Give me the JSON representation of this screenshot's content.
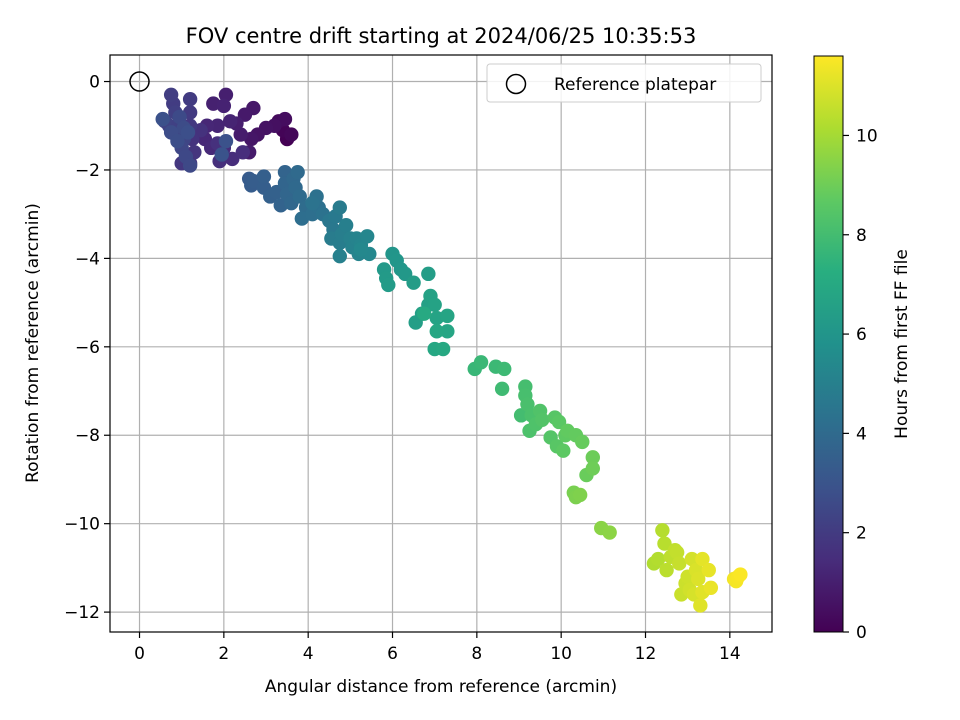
{
  "chart_data": {
    "type": "scatter",
    "title": "FOV centre drift starting at 2024/06/25 10:35:53",
    "xlabel": "Angular distance from reference (arcmin)",
    "ylabel": "Rotation from reference (arcmin)",
    "xlim": [
      -0.7,
      15.0
    ],
    "ylim": [
      -12.45,
      0.6
    ],
    "xticks": [
      0,
      2,
      4,
      6,
      8,
      10,
      12,
      14
    ],
    "yticks": [
      0,
      -2,
      -4,
      -6,
      -8,
      -10,
      -12
    ],
    "grid": true,
    "legend": {
      "placement": "top-right",
      "entries": [
        "Reference platepar"
      ]
    },
    "reference_point": {
      "x": 0,
      "y": 0,
      "label": "Reference platepar"
    },
    "colorbar": {
      "label": "Hours from first FF file",
      "min": 0,
      "max": 11.6,
      "ticks": [
        0,
        2,
        4,
        6,
        8,
        10
      ],
      "colormap": "viridis"
    },
    "series": [
      {
        "points": [
          {
            "x": 3.5,
            "y": -1.3,
            "c": 0.0
          },
          {
            "x": 3.4,
            "y": -1.1,
            "c": 0.1
          },
          {
            "x": 3.6,
            "y": -1.2,
            "c": 0.2
          },
          {
            "x": 3.3,
            "y": -0.9,
            "c": 0.3
          },
          {
            "x": 3.45,
            "y": -0.85,
            "c": 0.4
          },
          {
            "x": 3.2,
            "y": -1.0,
            "c": 0.5
          },
          {
            "x": 3.0,
            "y": -1.05,
            "c": 0.55
          },
          {
            "x": 2.8,
            "y": -1.2,
            "c": 0.6
          },
          {
            "x": 2.65,
            "y": -1.3,
            "c": 0.7
          },
          {
            "x": 2.7,
            "y": -0.6,
            "c": 0.75
          },
          {
            "x": 2.5,
            "y": -0.75,
            "c": 0.8
          },
          {
            "x": 2.6,
            "y": -1.6,
            "c": 0.85
          },
          {
            "x": 2.4,
            "y": -1.2,
            "c": 0.9
          },
          {
            "x": 2.3,
            "y": -0.95,
            "c": 0.95
          },
          {
            "x": 2.05,
            "y": -0.3,
            "c": 1.0
          },
          {
            "x": 1.75,
            "y": -0.5,
            "c": 1.05
          },
          {
            "x": 2.0,
            "y": -0.55,
            "c": 1.1
          },
          {
            "x": 2.15,
            "y": -0.9,
            "c": 1.15
          },
          {
            "x": 1.85,
            "y": -1.0,
            "c": 1.2
          },
          {
            "x": 1.6,
            "y": -1.0,
            "c": 1.25
          },
          {
            "x": 1.55,
            "y": -1.3,
            "c": 1.3
          },
          {
            "x": 1.7,
            "y": -1.5,
            "c": 1.35
          },
          {
            "x": 2.0,
            "y": -1.5,
            "c": 1.4
          },
          {
            "x": 2.2,
            "y": -1.75,
            "c": 1.45
          },
          {
            "x": 2.45,
            "y": -1.6,
            "c": 1.5
          },
          {
            "x": 1.9,
            "y": -1.8,
            "c": 1.55
          },
          {
            "x": 1.85,
            "y": -1.4,
            "c": 1.6
          },
          {
            "x": 1.45,
            "y": -1.1,
            "c": 1.65
          },
          {
            "x": 1.25,
            "y": -1.3,
            "c": 1.7
          },
          {
            "x": 1.3,
            "y": -1.6,
            "c": 1.75
          },
          {
            "x": 1.2,
            "y": -1.85,
            "c": 1.8
          },
          {
            "x": 1.0,
            "y": -1.85,
            "c": 1.85
          },
          {
            "x": 1.2,
            "y": -1.0,
            "c": 1.9
          },
          {
            "x": 1.2,
            "y": -0.7,
            "c": 1.95
          },
          {
            "x": 1.2,
            "y": -0.4,
            "c": 2.0
          },
          {
            "x": 0.8,
            "y": -0.5,
            "c": 2.05
          },
          {
            "x": 0.75,
            "y": -0.3,
            "c": 2.1
          },
          {
            "x": 0.85,
            "y": -0.7,
            "c": 2.15
          },
          {
            "x": 0.9,
            "y": -1.0,
            "c": 2.2
          },
          {
            "x": 0.7,
            "y": -1.0,
            "c": 2.25
          },
          {
            "x": 0.6,
            "y": -0.9,
            "c": 2.3
          },
          {
            "x": 0.85,
            "y": -1.2,
            "c": 2.35
          },
          {
            "x": 1.05,
            "y": -1.3,
            "c": 2.4
          },
          {
            "x": 1.0,
            "y": -1.5,
            "c": 2.45
          },
          {
            "x": 1.1,
            "y": -1.7,
            "c": 2.5
          },
          {
            "x": 1.2,
            "y": -1.9,
            "c": 2.55
          },
          {
            "x": 0.95,
            "y": -0.8,
            "c": 2.6
          },
          {
            "x": 1.05,
            "y": -1.05,
            "c": 2.65
          },
          {
            "x": 0.75,
            "y": -1.15,
            "c": 2.7
          },
          {
            "x": 0.9,
            "y": -1.35,
            "c": 2.75
          },
          {
            "x": 1.15,
            "y": -1.15,
            "c": 2.8
          },
          {
            "x": 0.55,
            "y": -0.85,
            "c": 2.85
          },
          {
            "x": 2.05,
            "y": -1.35,
            "c": 2.9
          },
          {
            "x": 1.95,
            "y": -1.65,
            "c": 2.95
          },
          {
            "x": 2.6,
            "y": -2.2,
            "c": 3.3
          },
          {
            "x": 2.65,
            "y": -2.35,
            "c": 3.35
          },
          {
            "x": 2.7,
            "y": -2.25,
            "c": 3.4
          },
          {
            "x": 2.95,
            "y": -2.4,
            "c": 3.45
          },
          {
            "x": 2.95,
            "y": -2.15,
            "c": 3.5
          },
          {
            "x": 3.1,
            "y": -2.6,
            "c": 3.55
          },
          {
            "x": 3.25,
            "y": -2.5,
            "c": 3.6
          },
          {
            "x": 3.35,
            "y": -2.8,
            "c": 3.65
          },
          {
            "x": 3.45,
            "y": -2.05,
            "c": 3.7
          },
          {
            "x": 3.45,
            "y": -2.3,
            "c": 3.75
          },
          {
            "x": 3.5,
            "y": -2.55,
            "c": 3.8
          },
          {
            "x": 3.6,
            "y": -2.75,
            "c": 3.85
          },
          {
            "x": 3.65,
            "y": -2.2,
            "c": 3.9
          },
          {
            "x": 3.7,
            "y": -2.4,
            "c": 3.95
          },
          {
            "x": 3.75,
            "y": -2.05,
            "c": 4.0
          },
          {
            "x": 3.8,
            "y": -2.6,
            "c": 4.05
          },
          {
            "x": 3.95,
            "y": -2.85,
            "c": 4.1
          },
          {
            "x": 3.85,
            "y": -3.1,
            "c": 4.15
          },
          {
            "x": 4.1,
            "y": -3.0,
            "c": 4.2
          },
          {
            "x": 4.25,
            "y": -2.85,
            "c": 4.25
          },
          {
            "x": 4.2,
            "y": -2.6,
            "c": 4.3
          },
          {
            "x": 4.35,
            "y": -3.0,
            "c": 4.35
          },
          {
            "x": 4.1,
            "y": -2.75,
            "c": 4.4
          },
          {
            "x": 4.5,
            "y": -3.15,
            "c": 4.6
          },
          {
            "x": 4.6,
            "y": -3.35,
            "c": 4.65
          },
          {
            "x": 4.65,
            "y": -3.05,
            "c": 4.7
          },
          {
            "x": 4.75,
            "y": -2.85,
            "c": 4.75
          },
          {
            "x": 4.55,
            "y": -3.55,
            "c": 4.8
          },
          {
            "x": 4.75,
            "y": -3.65,
            "c": 4.85
          },
          {
            "x": 4.8,
            "y": -3.45,
            "c": 4.9
          },
          {
            "x": 4.9,
            "y": -3.25,
            "c": 4.95
          },
          {
            "x": 4.75,
            "y": -3.95,
            "c": 5.0
          },
          {
            "x": 5.0,
            "y": -3.55,
            "c": 5.05
          },
          {
            "x": 5.05,
            "y": -3.75,
            "c": 5.1
          },
          {
            "x": 5.15,
            "y": -3.55,
            "c": 5.15
          },
          {
            "x": 5.2,
            "y": -3.9,
            "c": 5.2
          },
          {
            "x": 5.25,
            "y": -3.7,
            "c": 5.25
          },
          {
            "x": 5.4,
            "y": -3.5,
            "c": 5.3
          },
          {
            "x": 5.45,
            "y": -3.9,
            "c": 5.35
          },
          {
            "x": 5.25,
            "y": -3.8,
            "c": 5.4
          },
          {
            "x": 6.0,
            "y": -3.9,
            "c": 6.0
          },
          {
            "x": 6.1,
            "y": -4.05,
            "c": 6.05
          },
          {
            "x": 6.2,
            "y": -4.25,
            "c": 6.1
          },
          {
            "x": 6.3,
            "y": -4.35,
            "c": 6.15
          },
          {
            "x": 5.8,
            "y": -4.25,
            "c": 6.2
          },
          {
            "x": 5.85,
            "y": -4.45,
            "c": 6.25
          },
          {
            "x": 5.9,
            "y": -4.6,
            "c": 6.3
          },
          {
            "x": 6.5,
            "y": -4.55,
            "c": 6.35
          },
          {
            "x": 6.85,
            "y": -4.35,
            "c": 6.4
          },
          {
            "x": 6.55,
            "y": -5.45,
            "c": 6.45
          },
          {
            "x": 6.7,
            "y": -5.25,
            "c": 6.5
          },
          {
            "x": 6.85,
            "y": -5.05,
            "c": 6.55
          },
          {
            "x": 6.9,
            "y": -4.85,
            "c": 6.6
          },
          {
            "x": 7.0,
            "y": -5.05,
            "c": 6.65
          },
          {
            "x": 7.05,
            "y": -5.35,
            "c": 6.7
          },
          {
            "x": 7.3,
            "y": -5.3,
            "c": 6.75
          },
          {
            "x": 7.3,
            "y": -5.65,
            "c": 6.8
          },
          {
            "x": 7.05,
            "y": -5.65,
            "c": 6.85
          },
          {
            "x": 7.0,
            "y": -6.05,
            "c": 6.9
          },
          {
            "x": 7.2,
            "y": -6.05,
            "c": 6.95
          },
          {
            "x": 6.75,
            "y": -5.25,
            "c": 7.0
          },
          {
            "x": 7.95,
            "y": -6.5,
            "c": 7.7
          },
          {
            "x": 8.1,
            "y": -6.35,
            "c": 7.75
          },
          {
            "x": 8.45,
            "y": -6.45,
            "c": 7.8
          },
          {
            "x": 8.65,
            "y": -6.5,
            "c": 7.85
          },
          {
            "x": 8.6,
            "y": -6.95,
            "c": 7.9
          },
          {
            "x": 9.05,
            "y": -7.55,
            "c": 8.0
          },
          {
            "x": 9.15,
            "y": -6.9,
            "c": 8.05
          },
          {
            "x": 9.15,
            "y": -7.1,
            "c": 8.1
          },
          {
            "x": 9.2,
            "y": -7.3,
            "c": 8.15
          },
          {
            "x": 9.3,
            "y": -7.55,
            "c": 8.2
          },
          {
            "x": 9.25,
            "y": -7.9,
            "c": 8.25
          },
          {
            "x": 9.4,
            "y": -7.75,
            "c": 8.3
          },
          {
            "x": 9.5,
            "y": -7.45,
            "c": 8.35
          },
          {
            "x": 9.55,
            "y": -7.65,
            "c": 8.4
          },
          {
            "x": 9.75,
            "y": -8.05,
            "c": 8.45
          },
          {
            "x": 9.85,
            "y": -7.6,
            "c": 8.5
          },
          {
            "x": 9.9,
            "y": -8.25,
            "c": 8.55
          },
          {
            "x": 9.95,
            "y": -7.7,
            "c": 8.6
          },
          {
            "x": 10.05,
            "y": -8.35,
            "c": 8.65
          },
          {
            "x": 10.1,
            "y": -8.0,
            "c": 8.7
          },
          {
            "x": 10.15,
            "y": -7.9,
            "c": 8.75
          },
          {
            "x": 10.35,
            "y": -8.0,
            "c": 8.8
          },
          {
            "x": 10.5,
            "y": -8.15,
            "c": 8.85
          },
          {
            "x": 10.6,
            "y": -8.9,
            "c": 8.9
          },
          {
            "x": 10.75,
            "y": -8.5,
            "c": 8.95
          },
          {
            "x": 10.75,
            "y": -8.75,
            "c": 9.0
          },
          {
            "x": 10.3,
            "y": -9.3,
            "c": 9.2
          },
          {
            "x": 10.35,
            "y": -9.4,
            "c": 9.25
          },
          {
            "x": 10.45,
            "y": -9.35,
            "c": 9.3
          },
          {
            "x": 10.95,
            "y": -10.1,
            "c": 9.5
          },
          {
            "x": 11.15,
            "y": -10.2,
            "c": 9.55
          },
          {
            "x": 12.2,
            "y": -10.9,
            "c": 10.2
          },
          {
            "x": 12.3,
            "y": -10.8,
            "c": 10.25
          },
          {
            "x": 12.4,
            "y": -10.15,
            "c": 10.3
          },
          {
            "x": 12.45,
            "y": -10.45,
            "c": 10.35
          },
          {
            "x": 12.5,
            "y": -11.05,
            "c": 10.4
          },
          {
            "x": 12.6,
            "y": -10.75,
            "c": 10.45
          },
          {
            "x": 12.7,
            "y": -10.6,
            "c": 10.5
          },
          {
            "x": 12.75,
            "y": -10.65,
            "c": 10.55
          },
          {
            "x": 12.8,
            "y": -10.9,
            "c": 10.6
          },
          {
            "x": 12.85,
            "y": -11.6,
            "c": 10.65
          },
          {
            "x": 12.95,
            "y": -11.35,
            "c": 10.7
          },
          {
            "x": 13.0,
            "y": -11.2,
            "c": 10.75
          },
          {
            "x": 13.05,
            "y": -11.5,
            "c": 10.8
          },
          {
            "x": 13.1,
            "y": -10.8,
            "c": 10.85
          },
          {
            "x": 13.15,
            "y": -11.6,
            "c": 10.9
          },
          {
            "x": 13.2,
            "y": -11.05,
            "c": 10.95
          },
          {
            "x": 13.25,
            "y": -11.25,
            "c": 11.0
          },
          {
            "x": 13.3,
            "y": -11.85,
            "c": 11.05
          },
          {
            "x": 13.35,
            "y": -11.55,
            "c": 11.1
          },
          {
            "x": 13.35,
            "y": -10.8,
            "c": 11.15
          },
          {
            "x": 13.5,
            "y": -11.05,
            "c": 11.2
          },
          {
            "x": 13.55,
            "y": -11.45,
            "c": 11.25
          },
          {
            "x": 14.1,
            "y": -11.25,
            "c": 11.4
          },
          {
            "x": 14.15,
            "y": -11.3,
            "c": 11.45
          },
          {
            "x": 14.2,
            "y": -11.2,
            "c": 11.5
          },
          {
            "x": 14.25,
            "y": -11.15,
            "c": 11.55
          }
        ]
      }
    ]
  }
}
